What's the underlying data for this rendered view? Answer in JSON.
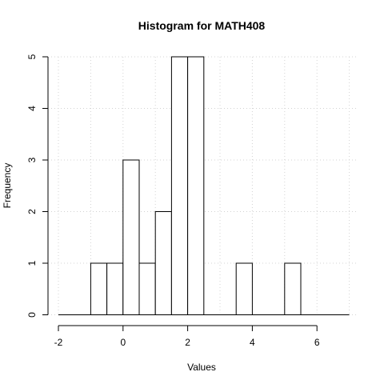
{
  "chart_data": {
    "type": "bar",
    "title": "Histogram for MATH408",
    "xlabel": "Values",
    "ylabel": "Frequency",
    "bin_width": 0.5,
    "bins": [
      {
        "start": -1.0,
        "end": -0.5,
        "count": 1
      },
      {
        "start": -0.5,
        "end": 0.0,
        "count": 1
      },
      {
        "start": 0.0,
        "end": 0.5,
        "count": 3
      },
      {
        "start": 0.5,
        "end": 1.0,
        "count": 1
      },
      {
        "start": 1.0,
        "end": 1.5,
        "count": 2
      },
      {
        "start": 1.5,
        "end": 2.0,
        "count": 5
      },
      {
        "start": 2.0,
        "end": 2.5,
        "count": 5
      },
      {
        "start": 2.5,
        "end": 3.0,
        "count": 0
      },
      {
        "start": 3.0,
        "end": 3.5,
        "count": 0
      },
      {
        "start": 3.5,
        "end": 4.0,
        "count": 1
      },
      {
        "start": 4.0,
        "end": 4.5,
        "count": 0
      },
      {
        "start": 4.5,
        "end": 5.0,
        "count": 0
      },
      {
        "start": 5.0,
        "end": 5.5,
        "count": 1
      }
    ],
    "xlim": [
      -2,
      7
    ],
    "ylim": [
      0,
      5
    ],
    "x_ticks": [
      -2,
      0,
      2,
      4,
      6
    ],
    "y_ticks": [
      0,
      1,
      2,
      3,
      4,
      5
    ],
    "grid": true,
    "grid_x": [
      -2,
      -1,
      0,
      1,
      2,
      3,
      4,
      5,
      6,
      7
    ],
    "colors": {
      "bar_fill": "#ffffff",
      "bar_stroke": "#000000",
      "grid": "#d3d3d3"
    }
  }
}
